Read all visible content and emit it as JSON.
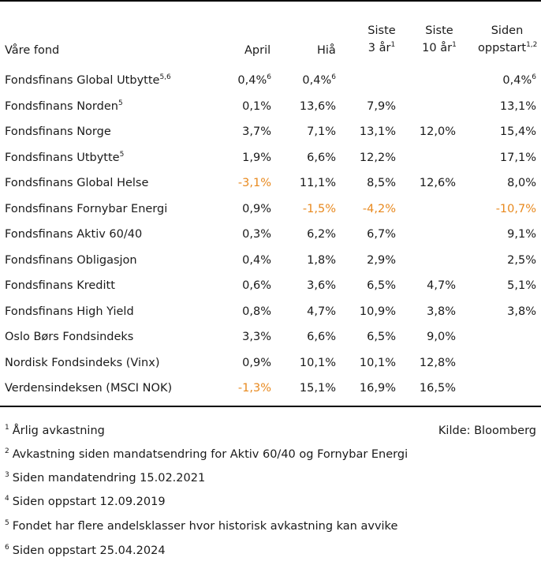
{
  "header": {
    "name": "Våre fond",
    "april": "April",
    "hia": "Hiå",
    "siste3_line1": "Siste",
    "siste3_line2": "3 år",
    "siste3_sup": "1",
    "siste10_line1": "Siste",
    "siste10_line2": "10 år",
    "siste10_sup": "1",
    "siden_line1": "Siden",
    "siden_line2": "oppstart",
    "siden_sup": "1,2"
  },
  "rows": [
    {
      "name": "Fondsfinans Global Utbytte",
      "name_sup": "5,6",
      "april": "0,4%",
      "april_sup": "6",
      "hia": "0,4%",
      "hia_sup": "6",
      "y3": "",
      "y10": "",
      "start": "0,4%",
      "start_sup": "6"
    },
    {
      "name": "Fondsfinans Norden",
      "name_sup": "5",
      "april": "0,1%",
      "hia": "13,6%",
      "y3": "7,9%",
      "y10": "",
      "start": "13,1%"
    },
    {
      "name": "Fondsfinans Norge",
      "name_sup": "",
      "april": "3,7%",
      "hia": "7,1%",
      "y3": "13,1%",
      "y10": "12,0%",
      "start": "15,4%"
    },
    {
      "name": "Fondsfinans Utbytte",
      "name_sup": "5",
      "april": "1,9%",
      "hia": "6,6%",
      "y3": "12,2%",
      "y10": "",
      "start": "17,1%"
    },
    {
      "name": "Fondsfinans Global Helse",
      "name_sup": "",
      "april": "-3,1%",
      "hia": "11,1%",
      "y3": "8,5%",
      "y10": "12,6%",
      "start": "8,0%"
    },
    {
      "name": "Fondsfinans Fornybar Energi",
      "name_sup": "",
      "april": "0,9%",
      "hia": "-1,5%",
      "y3": "-4,2%",
      "y10": "",
      "start": "-10,7%"
    },
    {
      "name": "Fondsfinans Aktiv 60/40",
      "name_sup": "",
      "april": "0,3%",
      "hia": "6,2%",
      "y3": "6,7%",
      "y10": "",
      "start": "9,1%"
    },
    {
      "name": "Fondsfinans Obligasjon",
      "name_sup": "",
      "april": "0,4%",
      "hia": "1,8%",
      "y3": "2,9%",
      "y10": "",
      "start": "2,5%"
    },
    {
      "name": "Fondsfinans Kreditt",
      "name_sup": "",
      "april": "0,6%",
      "hia": "3,6%",
      "y3": "6,5%",
      "y10": "4,7%",
      "start": "5,1%"
    },
    {
      "name": "Fondsfinans High Yield",
      "name_sup": "",
      "april": "0,8%",
      "hia": "4,7%",
      "y3": "10,9%",
      "y10": "3,8%",
      "start": "3,8%"
    },
    {
      "name": "Oslo Børs Fondsindeks",
      "name_sup": "",
      "april": "3,3%",
      "hia": "6,6%",
      "y3": "6,5%",
      "y10": "9,0%",
      "start": ""
    },
    {
      "name": "Nordisk Fondsindeks (Vinx)",
      "name_sup": "",
      "april": "0,9%",
      "hia": "10,1%",
      "y3": "10,1%",
      "y10": "12,8%",
      "start": ""
    },
    {
      "name": "Verdensindeksen (MSCI NOK)",
      "name_sup": "",
      "april": "-1,3%",
      "hia": "15,1%",
      "y3": "16,9%",
      "y10": "16,5%",
      "start": ""
    }
  ],
  "footnotes": [
    {
      "num": "1",
      "text": "Årlig avkastning"
    },
    {
      "num": "2",
      "text": "Avkastning siden mandatsendring for Aktiv 60/40 og Fornybar Energi"
    },
    {
      "num": "3",
      "text": "Siden mandatendring 15.02.2021"
    },
    {
      "num": "4",
      "text": "Siden oppstart 12.09.2019"
    },
    {
      "num": "5",
      "text": "Fondet har flere andelsklasser hvor historisk avkastning kan avvike"
    },
    {
      "num": "6",
      "text": "Siden oppstart 25.04.2024"
    }
  ],
  "source": "Kilde: Bloomberg",
  "colors": {
    "negative": "#e8891e",
    "text": "#1a1a1a",
    "rule": "#000000"
  }
}
